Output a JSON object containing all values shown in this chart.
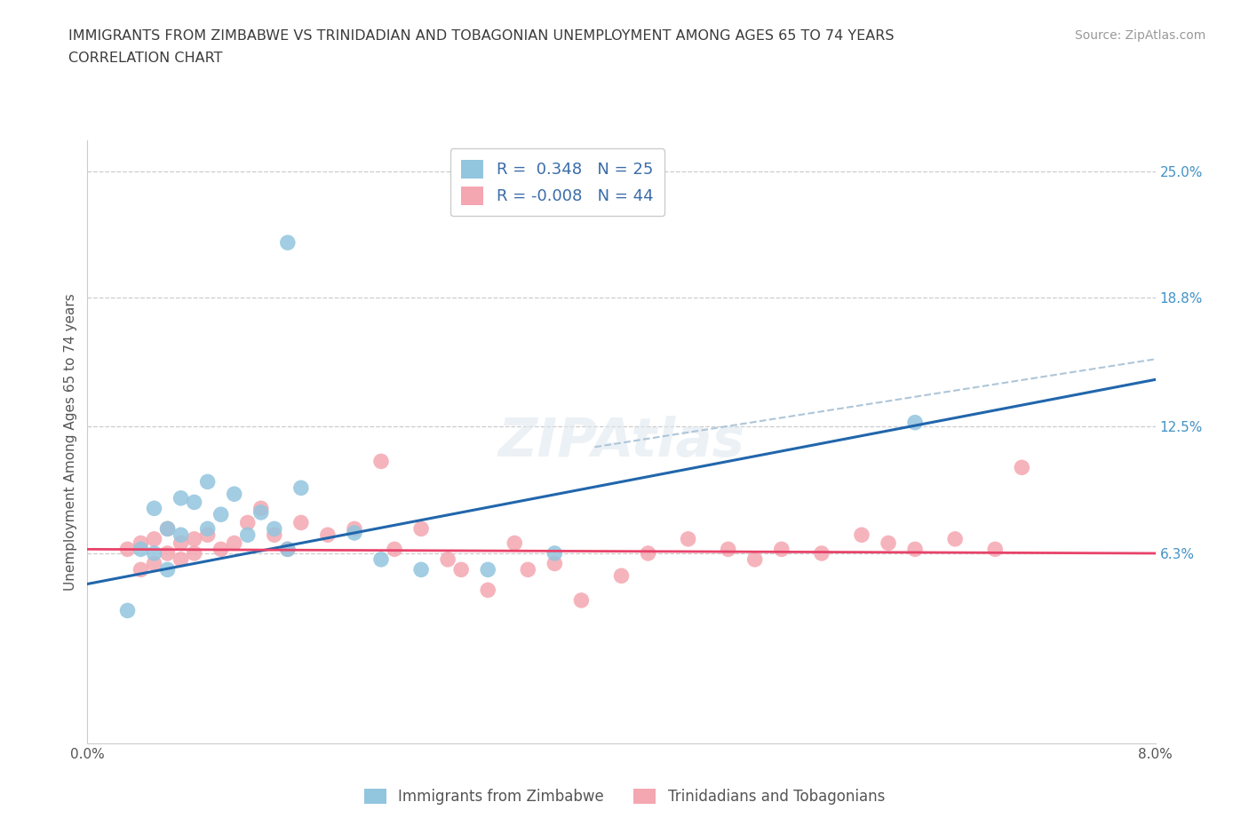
{
  "title_line1": "IMMIGRANTS FROM ZIMBABWE VS TRINIDADIAN AND TOBAGONIAN UNEMPLOYMENT AMONG AGES 65 TO 74 YEARS",
  "title_line2": "CORRELATION CHART",
  "source_text": "Source: ZipAtlas.com",
  "ylabel": "Unemployment Among Ages 65 to 74 years",
  "xlim": [
    0.0,
    0.08
  ],
  "ylim": [
    -0.03,
    0.265
  ],
  "right_ytick_values": [
    0.063,
    0.125,
    0.188,
    0.25
  ],
  "right_ytick_labels": [
    "6.3%",
    "12.5%",
    "18.8%",
    "25.0%"
  ],
  "hgrid_values": [
    0.063,
    0.125,
    0.188,
    0.25
  ],
  "legend_entry1": "R =  0.348   N = 25",
  "legend_entry2": "R = -0.008   N = 44",
  "legend_label1": "Immigrants from Zimbabwe",
  "legend_label2": "Trinidadians and Tobagonians",
  "color_blue": "#92c5de",
  "color_pink": "#f4a7b1",
  "color_blue_line": "#2166ac",
  "color_pink_line": "#e8436a",
  "color_gray_line": "#aec6d8",
  "title_color": "#3c3c3c",
  "axis_color": "#555555",
  "legend_text_color": "#3a6ca8",
  "right_label_color": "#4292c6",
  "blue_scatter_x": [
    0.015,
    0.004,
    0.006,
    0.005,
    0.007,
    0.006,
    0.005,
    0.007,
    0.009,
    0.008,
    0.009,
    0.01,
    0.011,
    0.012,
    0.013,
    0.014,
    0.015,
    0.016,
    0.02,
    0.022,
    0.025,
    0.03,
    0.035,
    0.062,
    0.003
  ],
  "blue_scatter_y": [
    0.215,
    0.065,
    0.055,
    0.063,
    0.072,
    0.075,
    0.085,
    0.09,
    0.098,
    0.088,
    0.075,
    0.082,
    0.092,
    0.072,
    0.083,
    0.075,
    0.065,
    0.095,
    0.073,
    0.06,
    0.055,
    0.055,
    0.063,
    0.127,
    0.035
  ],
  "pink_scatter_x": [
    0.003,
    0.004,
    0.004,
    0.005,
    0.005,
    0.006,
    0.006,
    0.007,
    0.007,
    0.008,
    0.008,
    0.009,
    0.01,
    0.011,
    0.012,
    0.013,
    0.014,
    0.015,
    0.016,
    0.018,
    0.02,
    0.022,
    0.023,
    0.025,
    0.027,
    0.028,
    0.03,
    0.032,
    0.033,
    0.035,
    0.037,
    0.04,
    0.042,
    0.045,
    0.048,
    0.05,
    0.052,
    0.055,
    0.058,
    0.06,
    0.062,
    0.065,
    0.068,
    0.07
  ],
  "pink_scatter_y": [
    0.065,
    0.068,
    0.055,
    0.07,
    0.058,
    0.063,
    0.075,
    0.06,
    0.068,
    0.063,
    0.07,
    0.072,
    0.065,
    0.068,
    0.078,
    0.085,
    0.072,
    0.065,
    0.078,
    0.072,
    0.075,
    0.108,
    0.065,
    0.075,
    0.06,
    0.055,
    0.045,
    0.068,
    0.055,
    0.058,
    0.04,
    0.052,
    0.063,
    0.07,
    0.065,
    0.06,
    0.065,
    0.063,
    0.072,
    0.068,
    0.065,
    0.07,
    0.065,
    0.105
  ],
  "blue_trend_x0": 0.0,
  "blue_trend_x1": 0.08,
  "blue_trend_y0": 0.048,
  "blue_trend_y1": 0.148,
  "pink_trend_x0": 0.0,
  "pink_trend_x1": 0.08,
  "pink_trend_y0": 0.065,
  "pink_trend_y1": 0.063,
  "gray_trend_x0": 0.038,
  "gray_trend_x1": 0.08,
  "gray_trend_y0": 0.115,
  "gray_trend_y1": 0.158
}
